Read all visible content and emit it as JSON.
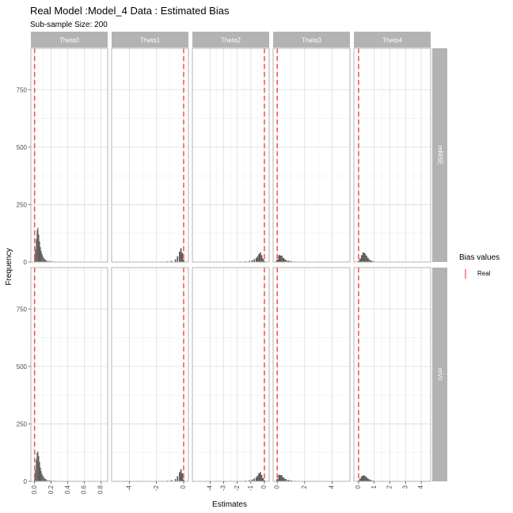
{
  "chart_data": {
    "type": "histogram",
    "title": "Real Model :Model_4 Data : Estimated Bias",
    "subtitle": "Sub-sample Size: 200",
    "xlabel": "Estimates",
    "ylabel": "Frequency",
    "columns": [
      "Theta0",
      "Theta1",
      "Theta2",
      "Theta3",
      "Theta4"
    ],
    "rows": [
      "mMSE",
      "mVc"
    ],
    "y_ticks": [
      0,
      250,
      500,
      750
    ],
    "ylim": [
      0,
      930
    ],
    "x_axes": [
      {
        "ticks": [
          0.0,
          0.2,
          0.4,
          0.6,
          0.8
        ],
        "labels": [
          "0.0",
          "0.2",
          "0.4",
          "0.6",
          "0.8"
        ],
        "xlim": [
          -0.045,
          0.88
        ]
      },
      {
        "ticks": [
          -4,
          -2,
          0
        ],
        "labels": [
          "-4",
          "-2",
          "0"
        ],
        "xlim": [
          -5.3,
          0.35
        ]
      },
      {
        "ticks": [
          -4,
          -3,
          -2,
          -1,
          0
        ],
        "labels": [
          "-4",
          "-3",
          "-2",
          "-1",
          "0"
        ],
        "xlim": [
          -5.3,
          0.35
        ]
      },
      {
        "ticks": [
          0,
          2,
          4
        ],
        "labels": [
          "0",
          "2",
          "4"
        ],
        "xlim": [
          -0.3,
          5.3
        ]
      },
      {
        "ticks": [
          0,
          1,
          2,
          3,
          4
        ],
        "labels": [
          "0",
          "1",
          "2",
          "3",
          "4"
        ],
        "xlim": [
          -0.3,
          4.6
        ]
      }
    ],
    "real_values": [
      0.0,
      0.0,
      0.0,
      0.0,
      0.0
    ],
    "histograms": [
      [
        {
          "x": [
            0.0,
            0.01,
            0.02,
            0.03,
            0.04,
            0.05,
            0.06,
            0.07,
            0.08,
            0.09,
            0.1,
            0.11,
            0.12,
            0.13,
            0.14,
            0.16,
            0.18,
            0.2,
            0.24,
            0.28,
            0.33,
            0.42,
            0.5
          ],
          "y": [
            15,
            55,
            100,
            140,
            150,
            120,
            90,
            65,
            48,
            35,
            25,
            18,
            14,
            10,
            8,
            6,
            5,
            4,
            3,
            2,
            2,
            1,
            1
          ]
        },
        {
          "x": [
            0.0,
            0.01,
            0.02,
            0.03,
            0.04,
            0.05,
            0.06,
            0.07,
            0.08,
            0.09,
            0.1,
            0.11,
            0.12,
            0.13,
            0.14,
            0.16,
            0.18,
            0.2,
            0.24,
            0.28,
            0.33,
            0.42,
            0.5
          ],
          "y": [
            12,
            50,
            95,
            125,
            130,
            110,
            85,
            60,
            45,
            32,
            24,
            17,
            13,
            10,
            8,
            6,
            5,
            4,
            3,
            2,
            2,
            1,
            1
          ]
        }
      ],
      [
        {
          "x": [
            -1.6,
            -1.2,
            -0.9,
            -0.6,
            -0.45,
            -0.3,
            -0.2,
            -0.1,
            0.0
          ],
          "y": [
            2,
            3,
            5,
            12,
            25,
            45,
            60,
            40,
            10
          ]
        },
        {
          "x": [
            -1.6,
            -1.2,
            -0.9,
            -0.6,
            -0.45,
            -0.3,
            -0.2,
            -0.1,
            0.0
          ],
          "y": [
            2,
            3,
            5,
            10,
            22,
            40,
            52,
            35,
            8
          ]
        }
      ],
      [
        {
          "x": [
            -1.8,
            -1.4,
            -1.1,
            -0.9,
            -0.75,
            -0.6,
            -0.5,
            -0.4,
            -0.3,
            -0.2,
            -0.1,
            0.0
          ],
          "y": [
            2,
            3,
            5,
            8,
            12,
            18,
            25,
            35,
            42,
            30,
            15,
            5
          ]
        },
        {
          "x": [
            -1.8,
            -1.4,
            -1.1,
            -0.9,
            -0.75,
            -0.6,
            -0.5,
            -0.4,
            -0.3,
            -0.2,
            -0.1,
            0.0
          ],
          "y": [
            2,
            3,
            5,
            8,
            12,
            18,
            25,
            35,
            40,
            28,
            14,
            5
          ]
        }
      ],
      [
        {
          "x": [
            0.0,
            0.15,
            0.3,
            0.45,
            0.6,
            0.8,
            1.0,
            1.3,
            1.6,
            2.0
          ],
          "y": [
            10,
            30,
            28,
            18,
            10,
            6,
            4,
            2,
            1,
            1
          ]
        },
        {
          "x": [
            0.0,
            0.15,
            0.3,
            0.45,
            0.6,
            0.8,
            1.0,
            1.3,
            1.6,
            2.0
          ],
          "y": [
            9,
            28,
            27,
            17,
            10,
            6,
            4,
            2,
            1,
            1
          ]
        }
      ],
      [
        {
          "x": [
            0.0,
            0.1,
            0.2,
            0.3,
            0.4,
            0.5,
            0.6,
            0.7,
            0.8,
            0.9,
            1.0,
            1.2
          ],
          "y": [
            5,
            15,
            30,
            42,
            38,
            28,
            18,
            10,
            6,
            4,
            2,
            1
          ]
        },
        {
          "x": [
            0.0,
            0.1,
            0.2,
            0.3,
            0.4,
            0.5,
            0.6,
            0.7,
            0.8,
            0.9,
            1.0,
            1.2,
            1.6
          ],
          "y": [
            4,
            12,
            22,
            26,
            24,
            18,
            12,
            8,
            5,
            3,
            2,
            1,
            1
          ]
        }
      ]
    ],
    "legend": {
      "title": "Bias values",
      "items": [
        {
          "label": "Real",
          "color": "#ff5555"
        }
      ],
      "position": "right"
    },
    "colors": {
      "bars": "#595959",
      "real_line": "#ff5555",
      "strip": "#b3b3b3",
      "grid": "#dcdcdc",
      "panel_border": "#b3b3b3"
    }
  }
}
